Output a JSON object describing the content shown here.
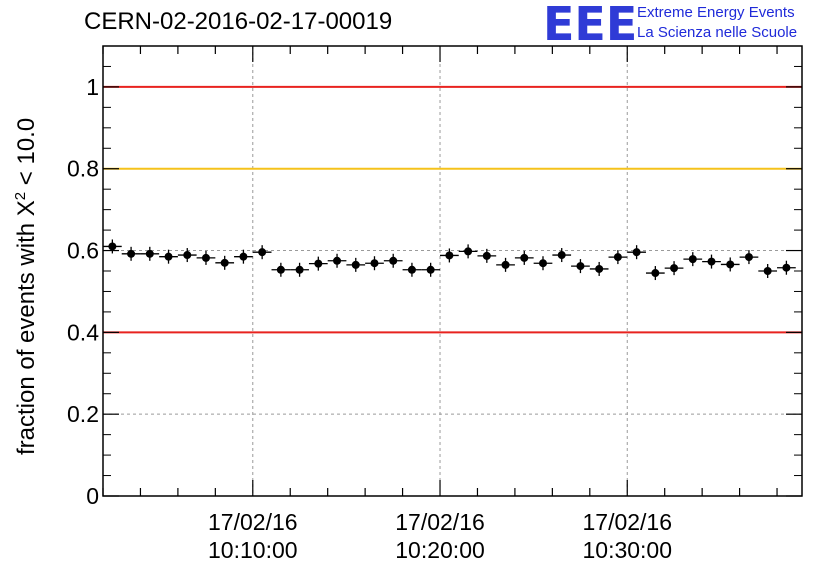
{
  "header": {
    "title": "CERN-02-2016-02-17-00019",
    "logo_letters": "EEE",
    "logo_line1": "Extreme Energy Events",
    "logo_line2": "La Scienza nelle Scuole"
  },
  "chart_data": {
    "type": "scatter",
    "title": "CERN-02-2016-02-17-00019",
    "ylabel_prefix": "fraction of events with X",
    "ylabel_sup": "2",
    "ylabel_suffix": " < 10.0",
    "xlabel": "",
    "ylim": [
      0,
      1.1
    ],
    "yticks": [
      "0",
      "0.2",
      "0.4",
      "0.6",
      "0.8",
      "1"
    ],
    "xticks": [
      {
        "date": "17/02/16",
        "time": "10:10:00"
      },
      {
        "date": "17/02/16",
        "time": "10:20:00"
      },
      {
        "date": "17/02/16",
        "time": "10:30:00"
      }
    ],
    "xlim": [
      "10:02:00",
      "10:39:20"
    ],
    "grid": true,
    "reference_lines": [
      {
        "y": 1.0,
        "color": "#e8231f"
      },
      {
        "y": 0.8,
        "color": "#f5c21b"
      },
      {
        "y": 0.4,
        "color": "#e8231f"
      }
    ],
    "x": [
      "10:02:30",
      "10:03:30",
      "10:04:30",
      "10:05:30",
      "10:06:30",
      "10:07:30",
      "10:08:30",
      "10:09:30",
      "10:10:30",
      "10:11:30",
      "10:12:30",
      "10:13:30",
      "10:14:30",
      "10:15:30",
      "10:16:30",
      "10:17:30",
      "10:18:30",
      "10:19:30",
      "10:20:30",
      "10:21:30",
      "10:22:30",
      "10:23:30",
      "10:24:30",
      "10:25:30",
      "10:26:30",
      "10:27:30",
      "10:28:30",
      "10:29:30",
      "10:30:30",
      "10:31:30",
      "10:32:30",
      "10:33:30",
      "10:34:30",
      "10:35:30",
      "10:36:30",
      "10:37:30",
      "10:38:30"
    ],
    "values": [
      0.61,
      0.592,
      0.592,
      0.585,
      0.589,
      0.582,
      0.57,
      0.585,
      0.596,
      0.553,
      0.553,
      0.568,
      0.575,
      0.565,
      0.569,
      0.575,
      0.553,
      0.553,
      0.588,
      0.598,
      0.587,
      0.565,
      0.582,
      0.569,
      0.589,
      0.562,
      0.555,
      0.584,
      0.596,
      0.545,
      0.557,
      0.579,
      0.573,
      0.566,
      0.584,
      0.55,
      0.558
    ]
  }
}
